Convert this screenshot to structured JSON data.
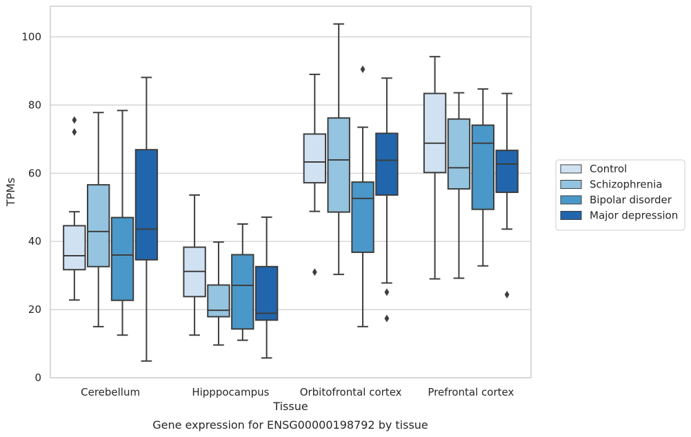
{
  "chart_data": {
    "type": "box",
    "caption": "Gene expression for ENSG00000198792 by tissue",
    "xlabel": "Tissue",
    "ylabel": "TPMs",
    "ylim": [
      0,
      109
    ],
    "yticks": [
      0,
      20,
      40,
      60,
      80,
      100
    ],
    "grid": true,
    "legend_position": "right",
    "categories": [
      "Cerebellum",
      "Hipppocampus",
      "Orbitofrontal cortex",
      "Prefrontal cortex"
    ],
    "series": [
      {
        "name": "Control",
        "color": "#d0e1f2",
        "boxes": [
          {
            "whislo": 22.8,
            "q1": 31.7,
            "med": 35.8,
            "q3": 44.6,
            "whishi": 48.7,
            "fliers": [
              72.1,
              75.6
            ]
          },
          {
            "whislo": 12.5,
            "q1": 23.8,
            "med": 31.2,
            "q3": 38.3,
            "whishi": 53.6,
            "fliers": []
          },
          {
            "whislo": 48.8,
            "q1": 57.2,
            "med": 63.3,
            "q3": 71.5,
            "whishi": 89.0,
            "fliers": [
              31.0
            ]
          },
          {
            "whislo": 29.0,
            "q1": 60.2,
            "med": 68.8,
            "q3": 83.4,
            "whishi": 94.2,
            "fliers": []
          }
        ]
      },
      {
        "name": "Schizophrenia",
        "color": "#94c4df",
        "boxes": [
          {
            "whislo": 15.0,
            "q1": 32.6,
            "med": 42.9,
            "q3": 56.6,
            "whishi": 77.8,
            "fliers": []
          },
          {
            "whislo": 9.6,
            "q1": 17.9,
            "med": 19.8,
            "q3": 27.2,
            "whishi": 39.8,
            "fliers": []
          },
          {
            "whislo": 30.3,
            "q1": 48.6,
            "med": 63.9,
            "q3": 76.2,
            "whishi": 103.8,
            "fliers": []
          },
          {
            "whislo": 29.2,
            "q1": 55.4,
            "med": 61.6,
            "q3": 75.9,
            "whishi": 83.6,
            "fliers": []
          }
        ]
      },
      {
        "name": "Bipolar disorder",
        "color": "#4a98c9",
        "boxes": [
          {
            "whislo": 12.5,
            "q1": 22.7,
            "med": 36.0,
            "q3": 47.0,
            "whishi": 78.4,
            "fliers": []
          },
          {
            "whislo": 11.0,
            "q1": 14.3,
            "med": 27.1,
            "q3": 36.1,
            "whishi": 45.1,
            "fliers": []
          },
          {
            "whislo": 15.0,
            "q1": 36.8,
            "med": 52.6,
            "q3": 57.4,
            "whishi": 73.5,
            "fliers": [
              90.5
            ]
          },
          {
            "whislo": 32.8,
            "q1": 49.4,
            "med": 68.8,
            "q3": 74.1,
            "whishi": 84.7,
            "fliers": []
          }
        ]
      },
      {
        "name": "Major depression",
        "color": "#2166ac",
        "boxes": [
          {
            "whislo": 4.9,
            "q1": 34.6,
            "med": 43.6,
            "q3": 66.9,
            "whishi": 88.1,
            "fliers": []
          },
          {
            "whislo": 5.8,
            "q1": 16.9,
            "med": 18.9,
            "q3": 32.6,
            "whishi": 47.1,
            "fliers": []
          },
          {
            "whislo": 27.8,
            "q1": 53.6,
            "med": 63.8,
            "q3": 71.7,
            "whishi": 87.9,
            "fliers": [
              17.4,
              25.1
            ]
          },
          {
            "whislo": 43.6,
            "q1": 54.4,
            "med": 62.7,
            "q3": 66.7,
            "whishi": 83.4,
            "fliers": [
              24.4
            ]
          }
        ]
      }
    ]
  }
}
